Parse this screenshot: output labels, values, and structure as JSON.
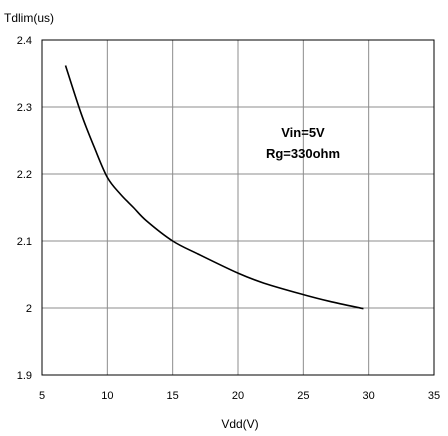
{
  "chart_data": {
    "type": "line",
    "title": "",
    "xlabel": "Vdd(V)",
    "ylabel": "Tdlim(us)",
    "xlim": [
      5,
      35
    ],
    "ylim": [
      1.9,
      2.4
    ],
    "xticks": [
      "5",
      "10",
      "15",
      "20",
      "25",
      "30",
      "35"
    ],
    "yticks": [
      "1.9",
      "2",
      "2.1",
      "2.2",
      "2.3",
      "2.4"
    ],
    "grid": true,
    "annotations": [
      "Vin=5V",
      "Rg=330ohm"
    ],
    "series": [
      {
        "x": [
          6.8,
          8,
          9,
          10,
          11,
          12,
          13,
          15,
          17,
          20,
          22,
          25,
          27,
          29.6
        ],
        "y": [
          2.362,
          2.29,
          2.24,
          2.195,
          2.17,
          2.15,
          2.13,
          2.1,
          2.08,
          2.052,
          2.037,
          2.02,
          2.01,
          1.999
        ]
      }
    ]
  }
}
